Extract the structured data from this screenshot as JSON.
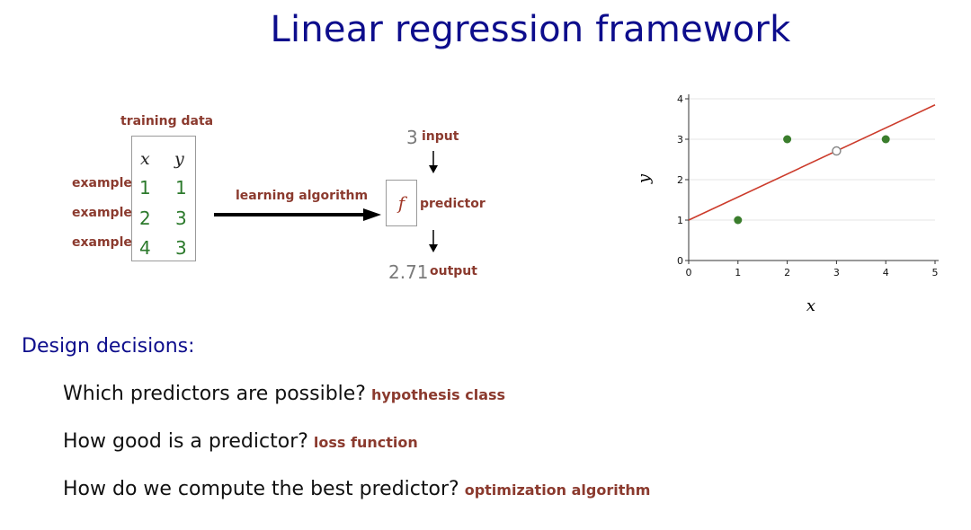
{
  "title": "Linear regression framework",
  "training": {
    "label": "training data",
    "headers": [
      "x",
      "y"
    ],
    "row_label": "example",
    "rows": [
      [
        "1",
        "1"
      ],
      [
        "2",
        "3"
      ],
      [
        "4",
        "3"
      ]
    ]
  },
  "learning_label": "learning algorithm",
  "predictor": {
    "input_value": "3",
    "input_label": "input",
    "symbol": "f",
    "label": "predictor",
    "output_value": "2.71",
    "output_label": "output"
  },
  "chart_data": {
    "type": "scatter",
    "xlabel": "x",
    "ylabel": "y",
    "xlim": [
      0,
      5
    ],
    "ylim": [
      0,
      4
    ],
    "xticks": [
      0,
      1,
      2,
      3,
      4,
      5
    ],
    "yticks": [
      0,
      1,
      2,
      3,
      4
    ],
    "grid": true,
    "points": [
      {
        "x": 1,
        "y": 1
      },
      {
        "x": 2,
        "y": 3
      },
      {
        "x": 4,
        "y": 3
      }
    ],
    "query_point": {
      "x": 3,
      "y": 2.71
    },
    "fit_line": {
      "intercept": 1.0,
      "slope": 0.57
    },
    "colors": {
      "points": "#3a7d2c",
      "line": "#cc3b2b",
      "query": "#888888"
    }
  },
  "design": {
    "title": "Design decisions:",
    "items": [
      {
        "question": "Which predictors are possible?",
        "tag": "hypothesis class"
      },
      {
        "question": "How good is a predictor?",
        "tag": "loss function"
      },
      {
        "question": "How do we compute the best predictor?",
        "tag": "optimization algorithm"
      }
    ]
  }
}
